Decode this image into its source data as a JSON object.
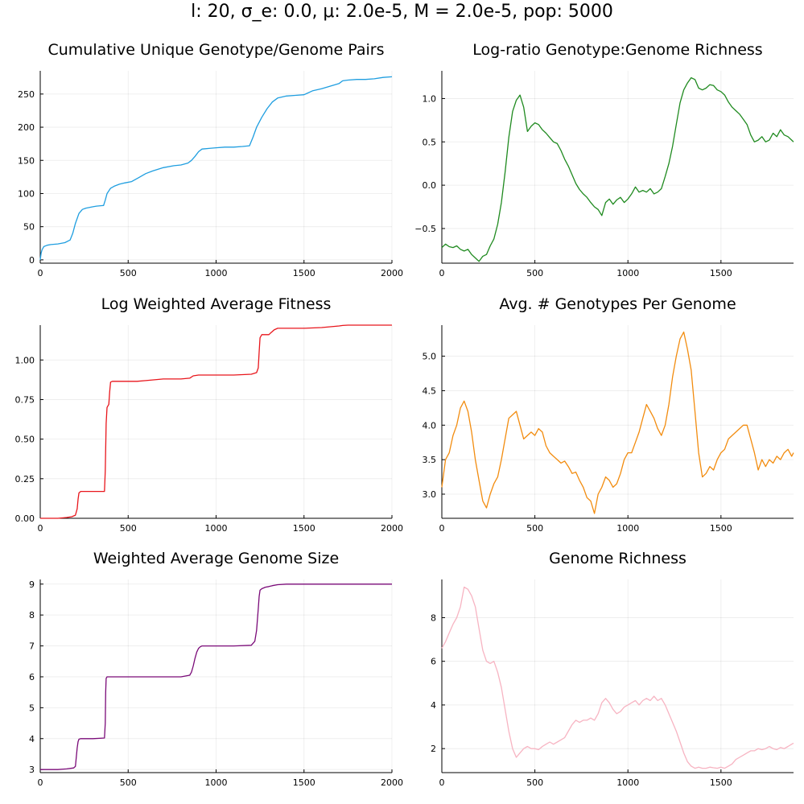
{
  "figure": {
    "suptitle": "l: 20, σ_e: 0.0, μ: 2.0e-5, M = 2.0e-5, pop: 5000"
  },
  "chart_data": [
    {
      "type": "line",
      "title": "Cumulative Unique Genotype/Genome Pairs",
      "xlabel": "",
      "ylabel": "",
      "xlim": [
        0,
        2000
      ],
      "ylim": [
        -5,
        285
      ],
      "xticks": [
        0,
        500,
        1000,
        1500,
        2000
      ],
      "yticks": [
        0,
        50,
        100,
        150,
        200,
        250
      ],
      "ytick_labels": [
        "0",
        "50",
        "100",
        "150",
        "200",
        "250"
      ],
      "grid": true,
      "color": "#1f9ee0",
      "series": [
        {
          "x": [
            0,
            5,
            10,
            20,
            40,
            60,
            100,
            140,
            170,
            185,
            200,
            220,
            240,
            260,
            300,
            320,
            360,
            370,
            380,
            400,
            420,
            450,
            480,
            520,
            560,
            600,
            640,
            700,
            760,
            800,
            840,
            860,
            880,
            900,
            920,
            960,
            1000,
            1050,
            1100,
            1150,
            1190,
            1210,
            1230,
            1260,
            1290,
            1320,
            1350,
            1400,
            1450,
            1500,
            1550,
            1600,
            1650,
            1700,
            1720,
            1750,
            1800,
            1850,
            1900,
            1950,
            2000
          ],
          "y": [
            0,
            10,
            15,
            20,
            22,
            23,
            24,
            26,
            30,
            40,
            55,
            70,
            76,
            78,
            80,
            81,
            82,
            90,
            100,
            108,
            111,
            114,
            116,
            118,
            124,
            130,
            134,
            139,
            142,
            143,
            146,
            150,
            156,
            163,
            167,
            168,
            169,
            170,
            170,
            171,
            172,
            185,
            200,
            215,
            228,
            238,
            244,
            247,
            248,
            249,
            255,
            258,
            262,
            266,
            270,
            271,
            272,
            272,
            273,
            275,
            276
          ]
        }
      ]
    },
    {
      "type": "line",
      "title": "Log-ratio Genotype:Genome Richness",
      "xlabel": "",
      "ylabel": "",
      "xlim": [
        0,
        1890
      ],
      "ylim": [
        -0.9,
        1.32
      ],
      "xticks": [
        0,
        500,
        1000,
        1500
      ],
      "yticks": [
        -0.5,
        0,
        0.5,
        1.0
      ],
      "ytick_labels": [
        "−0.5",
        "0.0",
        "0.5",
        "1.0"
      ],
      "grid": true,
      "color": "#1f8a1f",
      "series": [
        {
          "x": [
            0,
            20,
            40,
            60,
            80,
            100,
            120,
            140,
            160,
            180,
            200,
            220,
            240,
            260,
            280,
            300,
            320,
            340,
            360,
            380,
            400,
            420,
            440,
            460,
            480,
            500,
            520,
            540,
            560,
            580,
            600,
            620,
            640,
            660,
            680,
            700,
            720,
            740,
            760,
            780,
            800,
            820,
            840,
            860,
            880,
            900,
            920,
            940,
            960,
            980,
            1000,
            1020,
            1040,
            1060,
            1080,
            1100,
            1120,
            1140,
            1160,
            1180,
            1200,
            1220,
            1240,
            1260,
            1280,
            1300,
            1320,
            1340,
            1360,
            1380,
            1400,
            1420,
            1440,
            1460,
            1480,
            1500,
            1520,
            1540,
            1560,
            1580,
            1600,
            1620,
            1640,
            1660,
            1680,
            1700,
            1720,
            1740,
            1760,
            1780,
            1800,
            1820,
            1840,
            1860,
            1880,
            1890
          ],
          "y": [
            -0.72,
            -0.68,
            -0.71,
            -0.72,
            -0.7,
            -0.74,
            -0.76,
            -0.74,
            -0.8,
            -0.84,
            -0.88,
            -0.82,
            -0.8,
            -0.7,
            -0.62,
            -0.45,
            -0.2,
            0.15,
            0.55,
            0.85,
            0.98,
            1.04,
            0.9,
            0.62,
            0.68,
            0.72,
            0.7,
            0.64,
            0.6,
            0.55,
            0.5,
            0.48,
            0.4,
            0.3,
            0.22,
            0.12,
            0.02,
            -0.05,
            -0.1,
            -0.14,
            -0.2,
            -0.25,
            -0.28,
            -0.35,
            -0.2,
            -0.16,
            -0.22,
            -0.17,
            -0.14,
            -0.2,
            -0.16,
            -0.1,
            -0.02,
            -0.08,
            -0.06,
            -0.08,
            -0.04,
            -0.1,
            -0.08,
            -0.04,
            0.1,
            0.25,
            0.45,
            0.7,
            0.95,
            1.1,
            1.18,
            1.24,
            1.22,
            1.12,
            1.1,
            1.12,
            1.16,
            1.15,
            1.1,
            1.08,
            1.04,
            0.96,
            0.9,
            0.86,
            0.82,
            0.76,
            0.7,
            0.58,
            0.5,
            0.52,
            0.56,
            0.5,
            0.52,
            0.6,
            0.56,
            0.64,
            0.58,
            0.56,
            0.52,
            0.5
          ]
        }
      ]
    },
    {
      "type": "line",
      "title": "Log Weighted Average Fitness",
      "xlabel": "",
      "ylabel": "",
      "xlim": [
        0,
        2000
      ],
      "ylim": [
        0,
        1.22
      ],
      "xticks": [
        0,
        500,
        1000,
        1500,
        2000
      ],
      "yticks": [
        0,
        0.25,
        0.5,
        0.75,
        1.0
      ],
      "ytick_labels": [
        "0.00",
        "0.25",
        "0.50",
        "0.75",
        "1.00"
      ],
      "grid": true,
      "color": "#e8161c",
      "series": [
        {
          "x": [
            0,
            100,
            150,
            180,
            200,
            210,
            215,
            220,
            230,
            300,
            365,
            370,
            375,
            380,
            385,
            390,
            395,
            400,
            410,
            450,
            500,
            550,
            600,
            650,
            700,
            800,
            850,
            870,
            900,
            1000,
            1100,
            1200,
            1230,
            1240,
            1245,
            1250,
            1260,
            1300,
            1310,
            1320,
            1330,
            1340,
            1350,
            1400,
            1500,
            1600,
            1650,
            1700,
            1720,
            1750,
            2000
          ],
          "y": [
            0,
            0,
            0.005,
            0.01,
            0.02,
            0.06,
            0.12,
            0.16,
            0.17,
            0.17,
            0.17,
            0.3,
            0.6,
            0.7,
            0.71,
            0.72,
            0.8,
            0.86,
            0.865,
            0.865,
            0.865,
            0.865,
            0.87,
            0.875,
            0.88,
            0.88,
            0.885,
            0.9,
            0.905,
            0.905,
            0.905,
            0.91,
            0.92,
            0.95,
            1.05,
            1.14,
            1.16,
            1.16,
            1.17,
            1.18,
            1.19,
            1.195,
            1.2,
            1.2,
            1.2,
            1.205,
            1.21,
            1.215,
            1.218,
            1.22,
            1.22
          ]
        }
      ]
    },
    {
      "type": "line",
      "title": "Avg. # Genotypes Per Genome",
      "xlabel": "",
      "ylabel": "",
      "xlim": [
        0,
        1890
      ],
      "ylim": [
        2.65,
        5.45
      ],
      "xticks": [
        0,
        500,
        1000,
        1500
      ],
      "yticks": [
        3.0,
        3.5,
        4.0,
        4.5,
        5.0
      ],
      "ytick_labels": [
        "3.0",
        "3.5",
        "4.0",
        "4.5",
        "5.0"
      ],
      "grid": true,
      "color": "#f28c0f",
      "series": [
        {
          "x": [
            0,
            20,
            40,
            60,
            80,
            100,
            120,
            140,
            160,
            180,
            200,
            220,
            240,
            260,
            280,
            300,
            320,
            340,
            360,
            380,
            400,
            420,
            440,
            460,
            480,
            500,
            520,
            540,
            560,
            580,
            600,
            620,
            640,
            660,
            680,
            700,
            720,
            740,
            760,
            780,
            800,
            820,
            840,
            860,
            880,
            900,
            920,
            940,
            960,
            980,
            1000,
            1020,
            1040,
            1060,
            1080,
            1100,
            1120,
            1140,
            1160,
            1180,
            1200,
            1220,
            1240,
            1260,
            1280,
            1300,
            1320,
            1340,
            1360,
            1380,
            1400,
            1420,
            1440,
            1460,
            1480,
            1500,
            1520,
            1540,
            1560,
            1580,
            1600,
            1620,
            1640,
            1660,
            1680,
            1700,
            1720,
            1740,
            1760,
            1780,
            1800,
            1820,
            1840,
            1860,
            1880,
            1890
          ],
          "y": [
            3.1,
            3.5,
            3.6,
            3.85,
            4.0,
            4.25,
            4.35,
            4.2,
            3.9,
            3.5,
            3.2,
            2.9,
            2.8,
            3.0,
            3.15,
            3.25,
            3.5,
            3.8,
            4.1,
            4.15,
            4.2,
            4.0,
            3.8,
            3.85,
            3.9,
            3.85,
            3.95,
            3.9,
            3.7,
            3.6,
            3.55,
            3.5,
            3.45,
            3.48,
            3.4,
            3.3,
            3.32,
            3.2,
            3.1,
            2.95,
            2.9,
            2.72,
            3.0,
            3.1,
            3.25,
            3.2,
            3.1,
            3.15,
            3.3,
            3.5,
            3.6,
            3.6,
            3.75,
            3.9,
            4.1,
            4.3,
            4.2,
            4.1,
            3.95,
            3.85,
            4.0,
            4.3,
            4.7,
            5.0,
            5.25,
            5.35,
            5.1,
            4.8,
            4.2,
            3.6,
            3.25,
            3.3,
            3.4,
            3.35,
            3.5,
            3.6,
            3.65,
            3.8,
            3.85,
            3.9,
            3.95,
            4.0,
            4.0,
            3.8,
            3.6,
            3.35,
            3.5,
            3.4,
            3.5,
            3.45,
            3.55,
            3.5,
            3.6,
            3.65,
            3.55,
            3.6
          ]
        }
      ]
    },
    {
      "type": "line",
      "title": "Weighted Average Genome Size",
      "xlabel": "",
      "ylabel": "",
      "xlim": [
        0,
        2000
      ],
      "ylim": [
        2.9,
        9.15
      ],
      "xticks": [
        0,
        500,
        1000,
        1500,
        2000
      ],
      "yticks": [
        3,
        4,
        5,
        6,
        7,
        8,
        9
      ],
      "ytick_labels": [
        "3",
        "4",
        "5",
        "6",
        "7",
        "8",
        "9"
      ],
      "grid": true,
      "color": "#7a0a78",
      "series": [
        {
          "x": [
            0,
            100,
            150,
            190,
            200,
            205,
            210,
            215,
            220,
            230,
            300,
            365,
            370,
            372,
            375,
            380,
            400,
            500,
            700,
            800,
            850,
            860,
            870,
            880,
            890,
            900,
            910,
            920,
            1000,
            1100,
            1200,
            1220,
            1230,
            1240,
            1245,
            1250,
            1260,
            1280,
            1300,
            1320,
            1350,
            1400,
            2000
          ],
          "y": [
            3.0,
            3.0,
            3.02,
            3.05,
            3.1,
            3.4,
            3.7,
            3.9,
            3.98,
            4.0,
            4.0,
            4.02,
            4.5,
            5.5,
            5.95,
            6.0,
            6.0,
            6.0,
            6.0,
            6.0,
            6.05,
            6.15,
            6.35,
            6.6,
            6.8,
            6.92,
            6.97,
            7.0,
            7.0,
            7.0,
            7.02,
            7.15,
            7.5,
            8.2,
            8.6,
            8.8,
            8.85,
            8.9,
            8.92,
            8.95,
            8.98,
            9.0,
            9.0
          ]
        }
      ]
    },
    {
      "type": "line",
      "title": "Genome Richness",
      "xlabel": "",
      "ylabel": "",
      "xlim": [
        0,
        1890
      ],
      "ylim": [
        0.9,
        9.75
      ],
      "xticks": [
        0,
        500,
        1000,
        1500
      ],
      "yticks": [
        2,
        4,
        6,
        8
      ],
      "ytick_labels": [
        "2",
        "4",
        "6",
        "8"
      ],
      "grid": true,
      "color": "#f7b4c2",
      "series": [
        {
          "x": [
            0,
            20,
            40,
            60,
            80,
            100,
            120,
            140,
            160,
            180,
            200,
            220,
            240,
            260,
            280,
            300,
            320,
            340,
            360,
            380,
            400,
            420,
            440,
            460,
            480,
            500,
            520,
            540,
            560,
            580,
            600,
            620,
            640,
            660,
            680,
            700,
            720,
            740,
            760,
            780,
            800,
            820,
            840,
            860,
            880,
            900,
            920,
            940,
            960,
            980,
            1000,
            1020,
            1040,
            1060,
            1080,
            1100,
            1120,
            1140,
            1160,
            1180,
            1200,
            1220,
            1240,
            1260,
            1280,
            1300,
            1320,
            1340,
            1360,
            1380,
            1400,
            1420,
            1440,
            1460,
            1480,
            1500,
            1520,
            1540,
            1560,
            1580,
            1600,
            1620,
            1640,
            1660,
            1680,
            1700,
            1720,
            1740,
            1760,
            1780,
            1800,
            1820,
            1840,
            1860,
            1880,
            1890
          ],
          "y": [
            6.6,
            6.9,
            7.3,
            7.7,
            8.0,
            8.5,
            9.4,
            9.3,
            9.0,
            8.5,
            7.5,
            6.5,
            6.0,
            5.9,
            6.0,
            5.5,
            4.8,
            3.8,
            2.8,
            2.0,
            1.6,
            1.8,
            2.0,
            2.1,
            2.0,
            2.0,
            1.95,
            2.1,
            2.2,
            2.3,
            2.2,
            2.3,
            2.4,
            2.5,
            2.8,
            3.1,
            3.3,
            3.2,
            3.3,
            3.3,
            3.4,
            3.3,
            3.6,
            4.1,
            4.3,
            4.1,
            3.8,
            3.6,
            3.7,
            3.9,
            4.0,
            4.1,
            4.2,
            4.0,
            4.2,
            4.3,
            4.2,
            4.4,
            4.2,
            4.3,
            4.0,
            3.6,
            3.2,
            2.8,
            2.3,
            1.8,
            1.4,
            1.2,
            1.1,
            1.15,
            1.1,
            1.1,
            1.15,
            1.12,
            1.1,
            1.15,
            1.1,
            1.2,
            1.3,
            1.5,
            1.6,
            1.7,
            1.8,
            1.9,
            1.9,
            2.0,
            1.95,
            2.0,
            2.1,
            2.0,
            1.95,
            2.05,
            2.0,
            2.1,
            2.2,
            2.25
          ]
        }
      ]
    }
  ]
}
